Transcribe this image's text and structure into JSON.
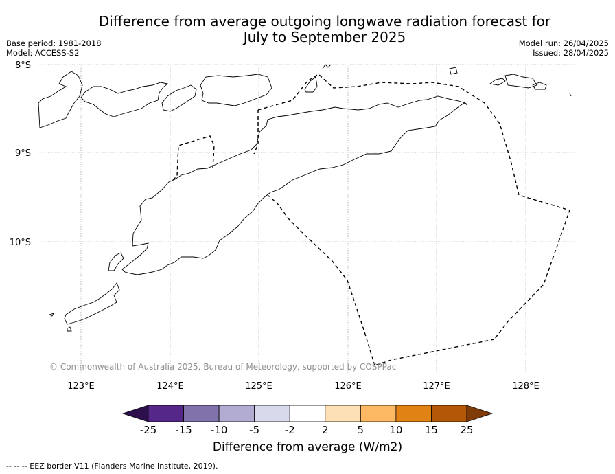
{
  "title_line1": "Difference from average outgoing longwave radiation forecast for",
  "title_line2": "July to September 2025",
  "meta_left": {
    "base_period": "Base period: 1981-2018",
    "model": "Model: ACCESS-S2"
  },
  "meta_right": {
    "model_run": "Model run: 26/04/2025",
    "issued": "Issued: 28/04/2025"
  },
  "latitude_labels": [
    "8°S",
    "9°S",
    "10°S"
  ],
  "longitude_labels": [
    "123°E",
    "124°E",
    "125°E",
    "126°E",
    "127°E",
    "128°E"
  ],
  "map_extent": {
    "lon": [
      122.5,
      128.6
    ],
    "lat": [
      -11.4,
      -8.0
    ]
  },
  "copyright": "© Commonwealth of Australia 2025, Bureau of Meteorology, supported by COSPPac",
  "colorbar": {
    "label": "Difference from average (W/m2)",
    "ticks": [
      "-25",
      "-15",
      "-10",
      "-5",
      "-2",
      "2",
      "5",
      "10",
      "15",
      "25"
    ],
    "colors": [
      "#2d0f4b",
      "#542788",
      "#8073ac",
      "#b2abd2",
      "#d8daeb",
      "#ffffff",
      "#fee0b6",
      "#fdb863",
      "#e08214",
      "#b35806",
      "#7f3b08"
    ]
  },
  "footer": "--  --  -- EEZ border V11 (Flanders Marine Institute, 2019)."
}
